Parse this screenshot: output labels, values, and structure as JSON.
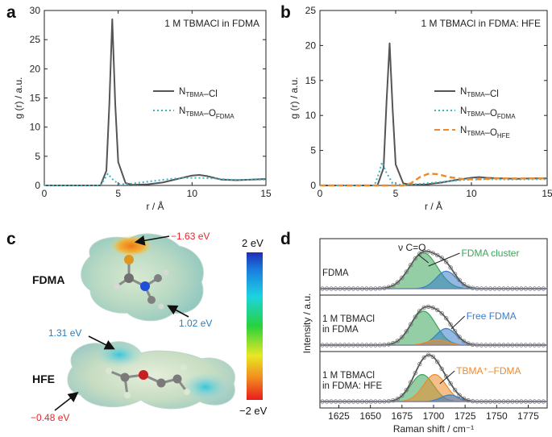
{
  "colors": {
    "nci": "#555555",
    "nofdma": "#3bb5c6",
    "nohfe": "#ef8a2a",
    "fdma_cluster": "#3aa55a",
    "free_fdma": "#3a7ecb",
    "tbma_fdma": "#ef8a2a",
    "fit": "#555555",
    "red_label": "#e8262a",
    "blue_label": "#2a7ec0"
  },
  "panels": {
    "a": "a",
    "b": "b",
    "c": "c",
    "d": "d"
  },
  "chart_data": [
    {
      "id": "a",
      "type": "line",
      "title": "1 M TBMACl in FDMA",
      "xlabel": "r / Å",
      "ylabel": "g (r) / a.u.",
      "xlim": [
        0,
        15
      ],
      "ylim": [
        0,
        30
      ],
      "xticks": [
        "0",
        "5",
        "10",
        "15"
      ],
      "yticks": [
        "0",
        "5",
        "10",
        "15",
        "20",
        "25",
        "30"
      ],
      "legend_position": "right",
      "series": [
        {
          "name_main": "N",
          "name_sub1": "TBMA",
          "name_mid": "–Cl",
          "name_sub2": "",
          "style": "solid",
          "color_key": "nci",
          "x": [
            0,
            3.8,
            4.2,
            4.4,
            4.6,
            4.8,
            5.0,
            5.5,
            6,
            7,
            8,
            9,
            10,
            10.5,
            11,
            12,
            13,
            14,
            15
          ],
          "y": [
            0,
            0,
            2.5,
            14,
            28.5,
            14,
            4,
            0.4,
            0.1,
            0.2,
            0.5,
            1.1,
            1.7,
            1.8,
            1.6,
            1.0,
            0.9,
            1.0,
            1.1
          ]
        },
        {
          "name_main": "N",
          "name_sub1": "TBMA",
          "name_mid": "–O",
          "name_sub2": "FDMA",
          "style": "dotted",
          "color_key": "nofdma",
          "x": [
            0,
            3.8,
            4.1,
            4.3,
            4.6,
            5.0,
            5.5,
            6.5,
            7.5,
            8.5,
            9.5,
            10.5,
            11.5,
            12.5,
            13.5,
            15
          ],
          "y": [
            0,
            0,
            1.2,
            2.0,
            1.1,
            0.3,
            0.2,
            0.5,
            0.8,
            1.1,
            1.3,
            1.3,
            1.2,
            1.0,
            0.95,
            1.0
          ]
        }
      ]
    },
    {
      "id": "b",
      "type": "line",
      "title": "1 M TBMACl in FDMA: HFE",
      "xlabel": "r / Å",
      "ylabel": "g (r) / a.u.",
      "xlim": [
        0,
        15
      ],
      "ylim": [
        0,
        25
      ],
      "xticks": [
        "0",
        "5",
        "10",
        "15"
      ],
      "yticks": [
        "0",
        "5",
        "10",
        "15",
        "20",
        "25"
      ],
      "legend_position": "right",
      "series": [
        {
          "name_main": "N",
          "name_sub1": "TBMA",
          "name_mid": "–Cl",
          "name_sub2": "",
          "style": "solid",
          "color_key": "nci",
          "x": [
            0,
            3.8,
            4.2,
            4.4,
            4.6,
            4.8,
            5.0,
            5.5,
            6,
            7,
            8,
            9,
            10,
            10.5,
            11,
            12,
            13,
            14,
            15
          ],
          "y": [
            0,
            0,
            2.5,
            12,
            20.3,
            11,
            3,
            0.3,
            0.1,
            0.15,
            0.4,
            0.8,
            1.1,
            1.2,
            1.1,
            1.0,
            0.95,
            1.0,
            1.0
          ]
        },
        {
          "name_main": "N",
          "name_sub1": "TBMA",
          "name_mid": "–O",
          "name_sub2": "FDMA",
          "style": "dotted",
          "color_key": "nofdma",
          "x": [
            0,
            3.6,
            3.9,
            4.1,
            4.4,
            4.8,
            5.3,
            6.5,
            8,
            9.5,
            11,
            12.5,
            15
          ],
          "y": [
            0,
            0,
            1.8,
            3.3,
            1.8,
            0.3,
            0.1,
            0.2,
            0.5,
            0.8,
            0.9,
            0.85,
            0.9
          ]
        },
        {
          "name_main": "N",
          "name_sub1": "TBMA",
          "name_mid": "–O",
          "name_sub2": "HFE",
          "style": "dashed",
          "color_key": "nohfe",
          "x": [
            0,
            5.5,
            6,
            6.6,
            7.2,
            7.8,
            8.5,
            9.5,
            10.5,
            11.5,
            13,
            15
          ],
          "y": [
            0,
            0,
            0.3,
            1.2,
            1.7,
            1.6,
            1.2,
            0.9,
            0.9,
            1.0,
            1.0,
            1.0
          ]
        }
      ]
    },
    {
      "id": "d",
      "type": "line",
      "xlabel": "Raman shift / cm⁻¹",
      "ylabel": "Intensity / a.u.",
      "xlim": [
        1610,
        1790
      ],
      "xticks": [
        "1625",
        "1650",
        "1675",
        "1700",
        "1725",
        "1750",
        "1775"
      ],
      "subpanels": [
        {
          "label_lines": [
            "FDMA"
          ],
          "annotation": "ν C=O",
          "components": [
            {
              "name": "FDMA cluster",
              "color_key": "fdma_cluster",
              "center": 1692,
              "height": 0.82,
              "width": 11
            },
            {
              "name": "",
              "color_key": "free_fdma",
              "center": 1710,
              "height": 0.4,
              "width": 8
            }
          ]
        },
        {
          "label_lines": [
            "1 M TBMACl",
            "in FDMA"
          ],
          "components": [
            {
              "name": "",
              "color_key": "fdma_cluster",
              "center": 1692,
              "height": 0.78,
              "width": 10
            },
            {
              "name": "Free FDMA",
              "color_key": "free_fdma",
              "center": 1710,
              "height": 0.38,
              "width": 8
            },
            {
              "name": "",
              "color_key": "tbma_fdma",
              "center": 1703,
              "height": 0.12,
              "width": 8
            }
          ]
        },
        {
          "label_lines": [
            "1 M TBMACl",
            "in FDMA: HFE"
          ],
          "components": [
            {
              "name": "",
              "color_key": "fdma_cluster",
              "center": 1691,
              "height": 0.62,
              "width": 9
            },
            {
              "name": "TBMA⁺–FDMA",
              "color_key": "tbma_fdma",
              "center": 1701,
              "height": 0.62,
              "width": 9
            },
            {
              "name": "",
              "color_key": "free_fdma",
              "center": 1713,
              "height": 0.15,
              "width": 7
            }
          ]
        }
      ]
    }
  ],
  "figure_c": {
    "fdma_label": "FDMA",
    "hfe_label": "HFE",
    "val_top": "−1.63 eV",
    "val_fdma_right": "1.02 eV",
    "val_hfe_left": "1.31 eV",
    "val_hfe_bottom": "−0.48 eV",
    "scale_top": "2 eV",
    "scale_bottom": "−2 eV"
  }
}
